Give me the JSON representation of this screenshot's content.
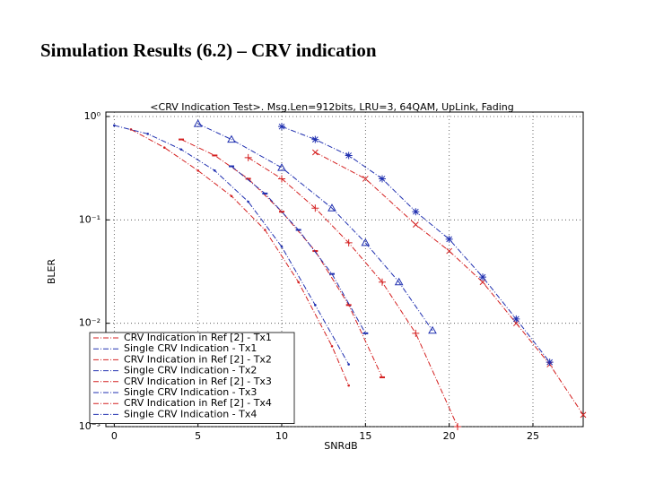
{
  "slide_title": "Simulation Results (6.2) – CRV indication",
  "chart_data": {
    "type": "line",
    "title": "<CRV Indication Test>. Msg.Len=912bits, LRU=3, 64QAM, UpLink, Fading",
    "x_label": "SNRdB",
    "y_label": "BLER",
    "xlim": [
      -0.5,
      28
    ],
    "xticks": [
      0,
      5,
      10,
      15,
      20,
      25
    ],
    "ylim": [
      0.001,
      1
    ],
    "log_y": true,
    "yticks": [
      {
        "value": 1,
        "label": "10⁰"
      },
      {
        "value": 0.1,
        "label": "10⁻¹"
      },
      {
        "value": 0.01,
        "label": "10⁻²"
      },
      {
        "value": 0.001,
        "label": "10⁻³"
      }
    ],
    "grid": true,
    "legend": "lower left",
    "series": [
      {
        "name": "CRV Indication in Ref [2] - Tx1",
        "color": "#d42020",
        "marker": "x",
        "x": [
          12,
          15,
          18,
          20,
          22,
          24,
          26,
          28
        ],
        "values": [
          0.45,
          0.25,
          0.09,
          0.05,
          0.025,
          0.01,
          0.004,
          0.0013
        ]
      },
      {
        "name": "Single CRV Indication - Tx1",
        "color": "#2030b0",
        "marker": "*",
        "x": [
          10,
          12,
          14,
          16,
          18,
          20,
          22,
          24,
          26
        ],
        "values": [
          0.8,
          0.6,
          0.42,
          0.25,
          0.12,
          0.065,
          0.028,
          0.011,
          0.0042
        ]
      },
      {
        "name": "CRV Indication in Ref [2] - Tx2",
        "color": "#d42020",
        "marker": "+",
        "x": [
          8,
          10,
          12,
          14,
          16,
          18,
          20.5
        ],
        "values": [
          0.4,
          0.25,
          0.13,
          0.06,
          0.025,
          0.008,
          0.001
        ]
      },
      {
        "name": "Single CRV Indication - Tx2",
        "color": "#2030b0",
        "marker": "^",
        "x": [
          5,
          7,
          10,
          13,
          15,
          17,
          19
        ],
        "values": [
          0.85,
          0.6,
          0.32,
          0.13,
          0.06,
          0.025,
          0.0085
        ]
      },
      {
        "name": "CRV Indication in Ref [2] - Tx3",
        "color": "#d42020",
        "marker": "_",
        "x": [
          4,
          6,
          8,
          10,
          12,
          14,
          16
        ],
        "values": [
          0.6,
          0.42,
          0.25,
          0.12,
          0.05,
          0.015,
          0.003
        ]
      },
      {
        "name": "Single CRV Indication - Tx3",
        "color": "#2030b0",
        "marker": "_",
        "x": [
          7,
          9,
          11,
          13,
          15
        ],
        "values": [
          0.33,
          0.18,
          0.08,
          0.03,
          0.008
        ]
      },
      {
        "name": "CRV Indication in Ref [2] - Tx4",
        "color": "#d42020",
        "marker": "",
        "x": [
          1,
          3,
          5,
          7,
          9,
          11,
          13,
          14
        ],
        "values": [
          0.75,
          0.5,
          0.3,
          0.17,
          0.08,
          0.025,
          0.006,
          0.0025
        ]
      },
      {
        "name": "Single CRV Indication - Tx4",
        "color": "#2030b0",
        "marker": "",
        "x": [
          0,
          2,
          4,
          6,
          8,
          10,
          12,
          14
        ],
        "values": [
          0.82,
          0.68,
          0.48,
          0.3,
          0.15,
          0.055,
          0.015,
          0.004
        ]
      }
    ]
  }
}
